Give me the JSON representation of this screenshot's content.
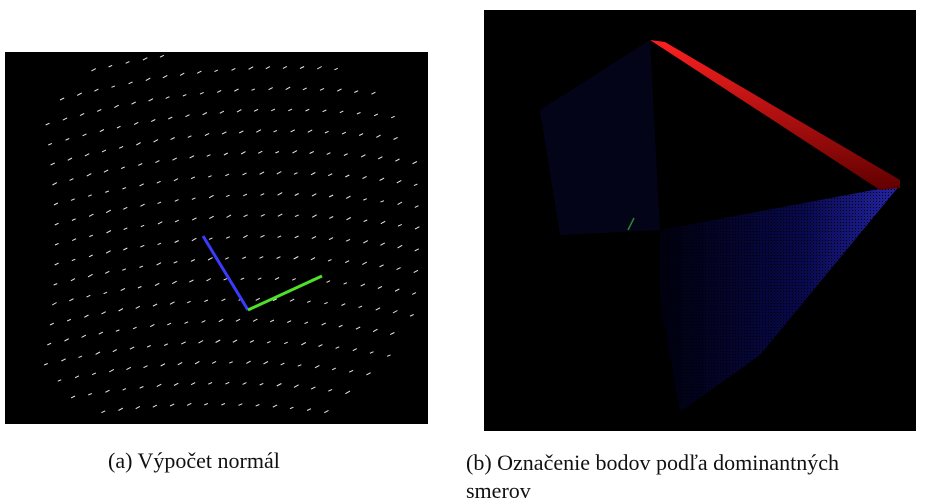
{
  "figures": [
    {
      "caption": "(a) Výpočet normál"
    },
    {
      "caption_lines": [
        "(b) Označenie bodov podľa dominantných",
        "smerov"
      ]
    }
  ]
}
